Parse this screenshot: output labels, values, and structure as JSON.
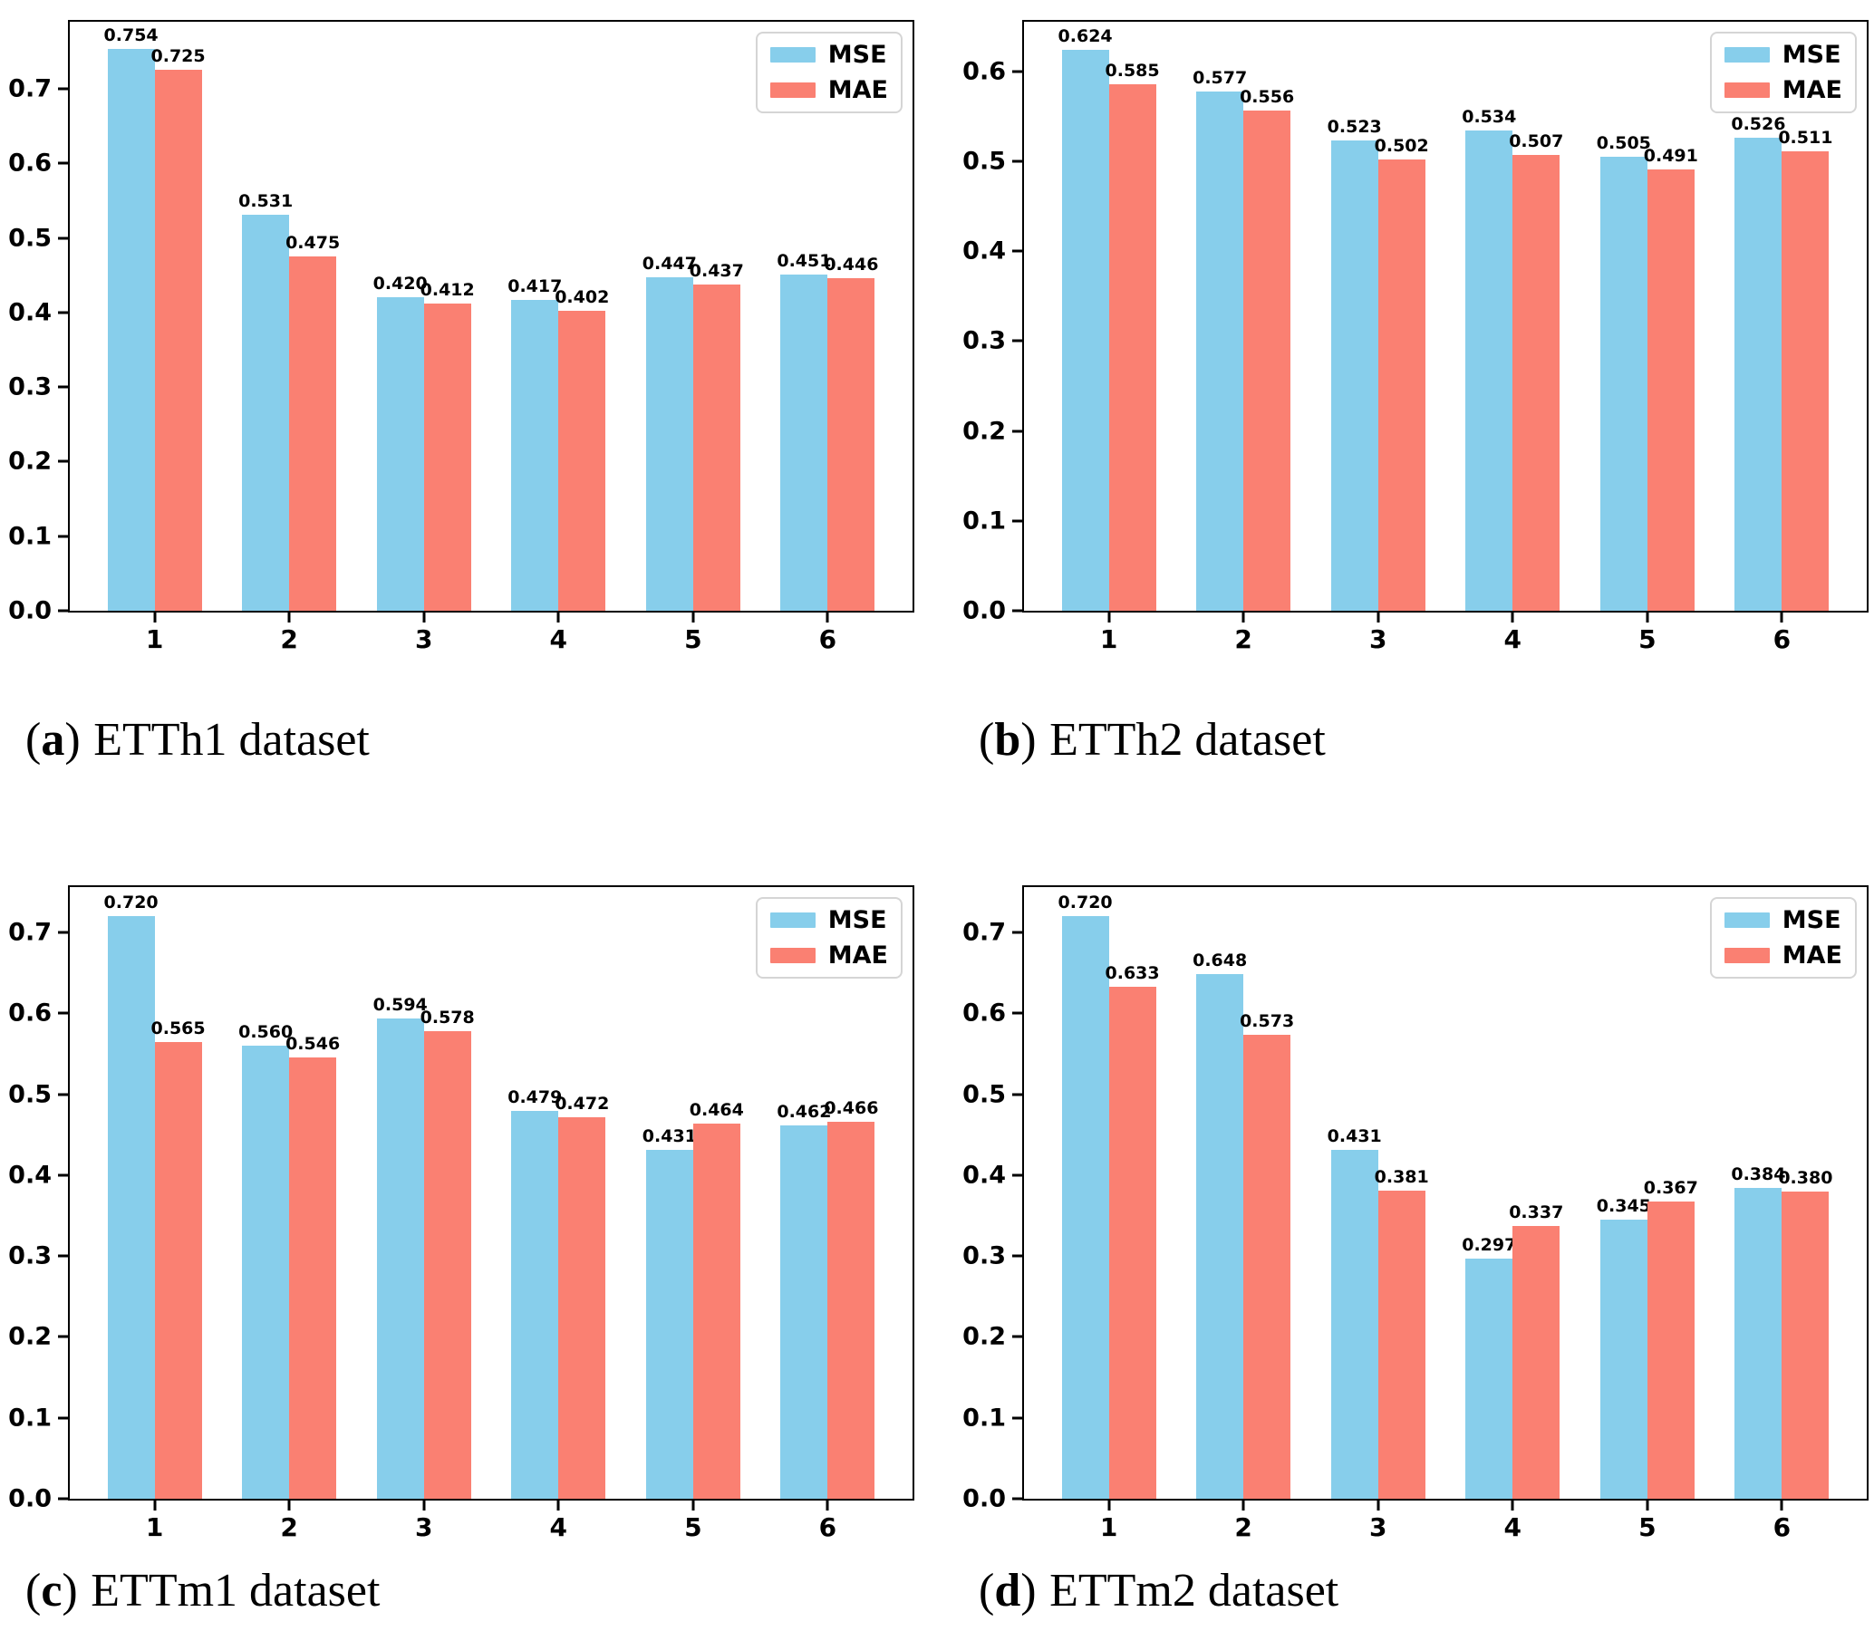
{
  "colors": {
    "mse": "#87CEEB",
    "mae": "#FA8072",
    "axis": "#000000",
    "legend_border": "#d5d5d5"
  },
  "chart_data": [
    {
      "type": "bar",
      "title": "(a) ETTh1 dataset",
      "caption": {
        "pre": "(",
        "letter": "a",
        "post": ")",
        "label": "ETTh1 dataset"
      },
      "categories": [
        "1",
        "2",
        "3",
        "4",
        "5",
        "6"
      ],
      "series": [
        {
          "name": "MSE",
          "color": "#87CEEB",
          "values": [
            0.754,
            0.531,
            0.42,
            0.417,
            0.447,
            0.451
          ]
        },
        {
          "name": "MAE",
          "color": "#FA8072",
          "values": [
            0.725,
            0.475,
            0.412,
            0.402,
            0.437,
            0.446
          ]
        }
      ],
      "xlabel": "",
      "ylabel": "",
      "ylim": [
        0,
        0.79
      ],
      "yticks": [
        0.0,
        0.1,
        0.2,
        0.3,
        0.4,
        0.5,
        0.6,
        0.7
      ],
      "grid": false,
      "legend_position": "upper right",
      "value_labels": true
    },
    {
      "type": "bar",
      "title": "(b) ETTh2 dataset",
      "caption": {
        "pre": "(",
        "letter": "b",
        "post": ")",
        "label": "ETTh2 dataset"
      },
      "categories": [
        "1",
        "2",
        "3",
        "4",
        "5",
        "6"
      ],
      "series": [
        {
          "name": "MSE",
          "color": "#87CEEB",
          "values": [
            0.624,
            0.577,
            0.523,
            0.534,
            0.505,
            0.526
          ]
        },
        {
          "name": "MAE",
          "color": "#FA8072",
          "values": [
            0.585,
            0.556,
            0.502,
            0.507,
            0.491,
            0.511
          ]
        }
      ],
      "xlabel": "",
      "ylabel": "",
      "ylim": [
        0,
        0.655
      ],
      "yticks": [
        0.0,
        0.1,
        0.2,
        0.3,
        0.4,
        0.5,
        0.6
      ],
      "grid": false,
      "legend_position": "upper right",
      "value_labels": true
    },
    {
      "type": "bar",
      "title": "(c) ETTm1 dataset",
      "caption": {
        "pre": "(",
        "letter": "c",
        "post": ")",
        "label": "ETTm1 dataset"
      },
      "categories": [
        "1",
        "2",
        "3",
        "4",
        "5",
        "6"
      ],
      "series": [
        {
          "name": "MSE",
          "color": "#87CEEB",
          "values": [
            0.72,
            0.56,
            0.594,
            0.479,
            0.431,
            0.462
          ]
        },
        {
          "name": "MAE",
          "color": "#FA8072",
          "values": [
            0.565,
            0.546,
            0.578,
            0.472,
            0.464,
            0.466
          ]
        }
      ],
      "xlabel": "",
      "ylabel": "",
      "ylim": [
        0,
        0.756
      ],
      "yticks": [
        0.0,
        0.1,
        0.2,
        0.3,
        0.4,
        0.5,
        0.6,
        0.7
      ],
      "grid": false,
      "legend_position": "upper right",
      "value_labels": true
    },
    {
      "type": "bar",
      "title": "(d) ETTm2 dataset",
      "caption": {
        "pre": "(",
        "letter": "d",
        "post": ")",
        "label": "ETTm2 dataset"
      },
      "categories": [
        "1",
        "2",
        "3",
        "4",
        "5",
        "6"
      ],
      "series": [
        {
          "name": "MSE",
          "color": "#87CEEB",
          "values": [
            0.72,
            0.648,
            0.431,
            0.297,
            0.345,
            0.384
          ]
        },
        {
          "name": "MAE",
          "color": "#FA8072",
          "values": [
            0.633,
            0.573,
            0.381,
            0.337,
            0.367,
            0.38
          ]
        }
      ],
      "xlabel": "",
      "ylabel": "",
      "ylim": [
        0,
        0.756
      ],
      "yticks": [
        0.0,
        0.1,
        0.2,
        0.3,
        0.4,
        0.5,
        0.6,
        0.7
      ],
      "grid": false,
      "legend_position": "upper right",
      "value_labels": true
    }
  ]
}
